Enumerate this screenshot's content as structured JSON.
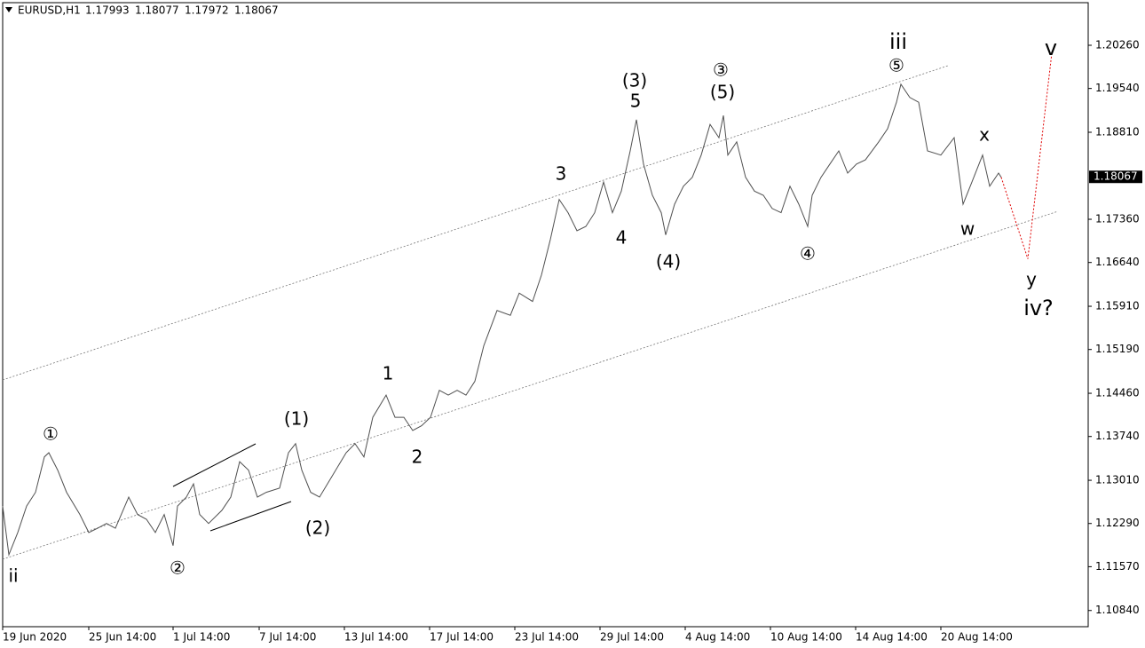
{
  "chart_data": {
    "type": "line",
    "header": {
      "symbol": "EURUSD,H1",
      "open": 1.17993,
      "high": 1.18077,
      "low": 1.17972,
      "close": 1.18067
    },
    "series": [
      {
        "color": "#505050",
        "x": [
          0,
          7,
          17,
          27,
          37,
          47,
          52,
          62,
          72,
          87,
          97,
          107,
          117,
          127,
          142,
          152,
          162,
          172,
          182,
          192,
          197,
          207,
          215,
          222,
          232,
          247,
          257,
          267,
          277,
          287,
          297,
          312,
          322,
          330,
          337,
          347,
          357,
          372,
          387,
          397,
          407,
          417,
          432,
          442,
          452,
          462,
          472,
          482,
          492,
          502,
          512,
          522,
          532,
          542,
          557,
          572,
          582,
          597,
          607,
          617,
          627,
          637,
          647,
          657,
          667,
          677,
          687,
          697,
          707,
          714,
          722,
          732,
          742,
          747,
          757,
          767,
          777,
          787,
          797,
          807,
          812,
          817,
          827,
          837,
          847,
          857,
          867,
          877,
          887,
          897,
          907,
          912,
          922,
          932,
          942,
          952,
          962,
          972,
          987,
          997,
          1007,
          1012,
          1022,
          1032,
          1042,
          1057,
          1072,
          1082,
          1092,
          1104,
          1112,
          1122,
          1125
        ],
        "values": [
          1.1258,
          1.1177,
          1.1214,
          1.1258,
          1.1281,
          1.134,
          1.1347,
          1.1318,
          1.1281,
          1.1244,
          1.1214,
          1.1221,
          1.1229,
          1.1221,
          1.1273,
          1.1244,
          1.1236,
          1.1214,
          1.1244,
          1.1192,
          1.1258,
          1.1273,
          1.1295,
          1.1244,
          1.1229,
          1.1251,
          1.1273,
          1.1332,
          1.1318,
          1.1273,
          1.1281,
          1.1288,
          1.1347,
          1.1362,
          1.1318,
          1.1281,
          1.1273,
          1.131,
          1.1347,
          1.1362,
          1.134,
          1.1406,
          1.1443,
          1.1406,
          1.1406,
          1.1384,
          1.1392,
          1.1406,
          1.1451,
          1.1443,
          1.1451,
          1.1443,
          1.1466,
          1.1525,
          1.1584,
          1.1576,
          1.1613,
          1.1599,
          1.1643,
          1.1702,
          1.1769,
          1.1747,
          1.1717,
          1.1724,
          1.1747,
          1.1798,
          1.1747,
          1.1783,
          1.185,
          1.1902,
          1.1828,
          1.1776,
          1.1747,
          1.171,
          1.1761,
          1.1791,
          1.1806,
          1.1843,
          1.1894,
          1.1872,
          1.1909,
          1.1843,
          1.1865,
          1.1806,
          1.1783,
          1.1776,
          1.1754,
          1.1747,
          1.1791,
          1.1761,
          1.1724,
          1.1776,
          1.1806,
          1.1828,
          1.185,
          1.1813,
          1.1828,
          1.1835,
          1.1865,
          1.1887,
          1.1931,
          1.1961,
          1.1939,
          1.1931,
          1.185,
          1.1843,
          1.1872,
          1.1761,
          1.1798,
          1.1843,
          1.1791,
          1.1813,
          1.1806
        ]
      },
      {
        "color": "#e00000",
        "dashed": true,
        "x": [
          1125,
          1155,
          1182
        ],
        "values": [
          1.1806,
          1.167,
          1.2013
        ]
      }
    ],
    "xlim": [
      0,
      1223
    ],
    "xticks": [
      {
        "value": 0,
        "label": "19 Jun 2020"
      },
      {
        "value": 97,
        "label": "25 Jun 14:00"
      },
      {
        "value": 192,
        "label": "1 Jul 14:00"
      },
      {
        "value": 289,
        "label": "7 Jul 14:00"
      },
      {
        "value": 385,
        "label": "13 Jul 14:00"
      },
      {
        "value": 481,
        "label": "17 Jul 14:00"
      },
      {
        "value": 577,
        "label": "23 Jul 14:00"
      },
      {
        "value": 673,
        "label": "29 Jul 14:00"
      },
      {
        "value": 769,
        "label": "4 Aug 14:00"
      },
      {
        "value": 865,
        "label": "10 Aug 14:00"
      },
      {
        "value": 961,
        "label": "14 Aug 14:00"
      },
      {
        "value": 1057,
        "label": "20 Aug 14:00"
      }
    ],
    "ylim": [
      1.1057,
      1.2097
    ],
    "yticks": [
      {
        "value": 1.2026,
        "label": "1.20260"
      },
      {
        "value": 1.1954,
        "label": "1.19540"
      },
      {
        "value": 1.1881,
        "label": "1.18810"
      },
      {
        "value": 1.1736,
        "label": "1.17360"
      },
      {
        "value": 1.1664,
        "label": "1.16640"
      },
      {
        "value": 1.1591,
        "label": "1.15910"
      },
      {
        "value": 1.1519,
        "label": "1.15190"
      },
      {
        "value": 1.1446,
        "label": "1.14460"
      },
      {
        "value": 1.1374,
        "label": "1.13740"
      },
      {
        "value": 1.1301,
        "label": "1.13010"
      },
      {
        "value": 1.1229,
        "label": "1.12290"
      },
      {
        "value": 1.1157,
        "label": "1.11570"
      },
      {
        "value": 1.1084,
        "label": "1.10840"
      }
    ],
    "annotations": [
      "ii",
      "①",
      "②",
      "(1)",
      "(2)",
      "1",
      "2",
      "3",
      "4",
      "(3)",
      "5",
      "(4)",
      "③",
      "(5)",
      "④",
      "iii",
      "⑤",
      "x",
      "w",
      "y",
      "iv?",
      "v"
    ]
  }
}
